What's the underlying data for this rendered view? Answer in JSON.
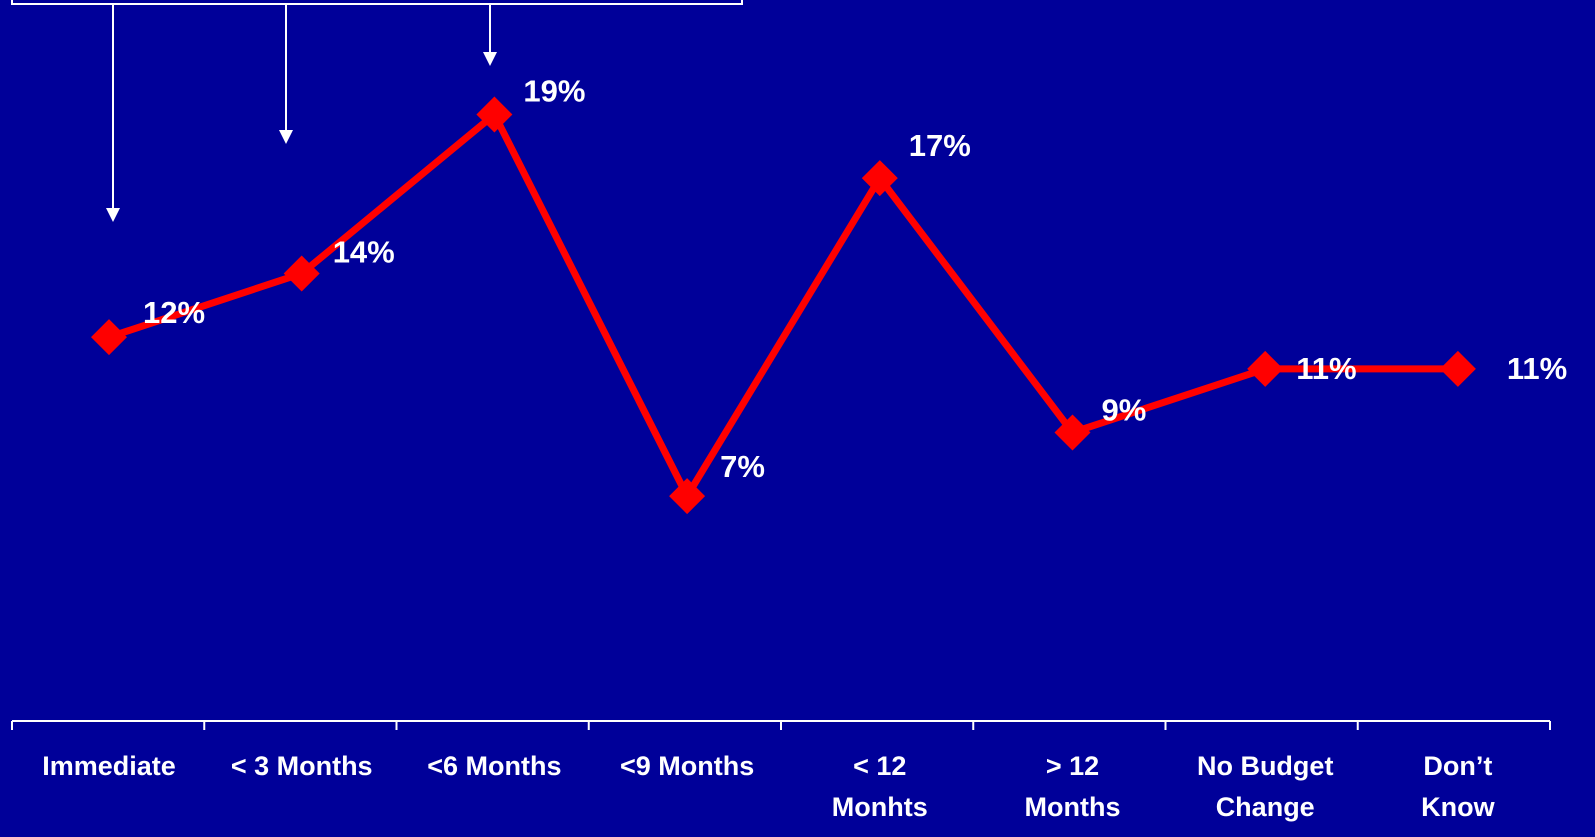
{
  "colors": {
    "background": "#000099",
    "series_line": "#ff0000",
    "marker": "#ff0000",
    "text": "#ffffff",
    "axis": "#ffffff",
    "callout": "#ffffff"
  },
  "chart_data": {
    "type": "line",
    "title": "",
    "xlabel": "",
    "ylabel": "",
    "categories": [
      [
        "Immediate"
      ],
      [
        "< 3 Months"
      ],
      [
        "<6 Months"
      ],
      [
        "<9 Months"
      ],
      [
        "< 12",
        "Monhts"
      ],
      [
        "> 12",
        "Months"
      ],
      [
        "No Budget",
        "Change"
      ],
      [
        "Don’t",
        "Know"
      ]
    ],
    "series": [
      {
        "values": [
          12,
          14,
          19,
          7,
          17,
          9,
          11,
          11
        ],
        "data_labels": [
          "12%",
          "14%",
          "19%",
          "7%",
          "17%",
          "9%",
          "11%",
          "11%"
        ],
        "marker": "diamond"
      }
    ],
    "ylim": [
      0,
      25
    ],
    "y_axis_visible": false,
    "grid": false,
    "legend": "none",
    "annotations": {
      "callout_arrows_pointing_to": [
        "Immediate",
        "< 3 Months",
        "<6 Months"
      ]
    }
  }
}
